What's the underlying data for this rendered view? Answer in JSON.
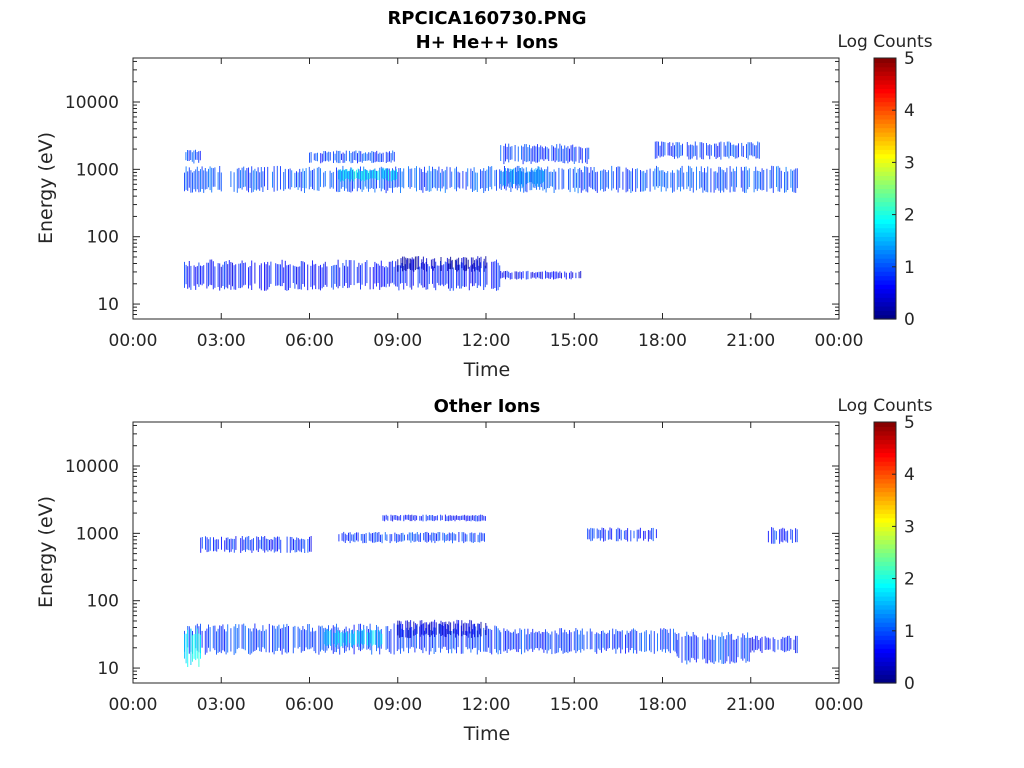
{
  "figure": {
    "title_line1": "RPCICA160730.PNG"
  },
  "chart_data": [
    {
      "type": "heatmap",
      "title": "H+ He++ Ions",
      "xlabel": "Time",
      "ylabel": "Energy (eV)",
      "x_ticks": [
        "00:00",
        "03:00",
        "06:00",
        "09:00",
        "12:00",
        "15:00",
        "18:00",
        "21:00",
        "00:00"
      ],
      "x_range_hours": [
        0,
        24
      ],
      "y_scale": "log",
      "y_ticks": [
        "10",
        "100",
        "1000",
        "10000"
      ],
      "y_tick_values": [
        10,
        100,
        1000,
        10000
      ],
      "y_range": [
        6,
        45000
      ],
      "colorbar": {
        "label": "Log Counts",
        "ticks": [
          "0",
          "1",
          "2",
          "3",
          "4",
          "5"
        ],
        "range": [
          0,
          5
        ],
        "colormap": "jet"
      },
      "bands": [
        {
          "t0": 1.75,
          "t1": 12.5,
          "e0": 18,
          "e1": 40,
          "level": 0.7
        },
        {
          "t0": 9.0,
          "t1": 12.0,
          "e0": 32,
          "e1": 48,
          "level": 0.25
        },
        {
          "t0": 12.5,
          "t1": 15.3,
          "e0": 24,
          "e1": 30,
          "level": 0.6
        },
        {
          "t0": 1.75,
          "t1": 22.6,
          "e0": 500,
          "e1": 1000,
          "level": 1.0
        },
        {
          "t0": 7.0,
          "t1": 9.0,
          "e0": 700,
          "e1": 1000,
          "level": 1.8
        },
        {
          "t0": 12.5,
          "t1": 14.0,
          "e0": 600,
          "e1": 1000,
          "level": 1.3
        },
        {
          "t0": 6.0,
          "t1": 9.0,
          "e0": 1300,
          "e1": 1800,
          "level": 0.9
        },
        {
          "t0": 12.5,
          "t1": 15.5,
          "e0": 1300,
          "e1": 2200,
          "level": 0.9
        },
        {
          "t0": 17.7,
          "t1": 21.3,
          "e0": 1500,
          "e1": 2400,
          "level": 0.9
        },
        {
          "t0": 1.8,
          "t1": 2.3,
          "e0": 1300,
          "e1": 1900,
          "level": 0.9
        }
      ]
    },
    {
      "type": "heatmap",
      "title": "Other Ions",
      "xlabel": "Time",
      "ylabel": "Energy (eV)",
      "x_ticks": [
        "00:00",
        "03:00",
        "06:00",
        "09:00",
        "12:00",
        "15:00",
        "18:00",
        "21:00",
        "00:00"
      ],
      "x_range_hours": [
        0,
        24
      ],
      "y_scale": "log",
      "y_ticks": [
        "10",
        "100",
        "1000",
        "10000"
      ],
      "y_tick_values": [
        10,
        100,
        1000,
        10000
      ],
      "y_range": [
        6,
        45000
      ],
      "colorbar": {
        "label": "Log Counts",
        "ticks": [
          "0",
          "1",
          "2",
          "3",
          "4",
          "5"
        ],
        "range": [
          0,
          5
        ],
        "colormap": "jet"
      },
      "bands": [
        {
          "t0": 1.75,
          "t1": 12.5,
          "e0": 18,
          "e1": 40,
          "level": 0.9
        },
        {
          "t0": 6.5,
          "t1": 8.5,
          "e0": 22,
          "e1": 35,
          "level": 1.7
        },
        {
          "t0": 1.75,
          "t1": 2.3,
          "e0": 12,
          "e1": 35,
          "level": 1.8
        },
        {
          "t0": 9.0,
          "t1": 12.0,
          "e0": 30,
          "e1": 48,
          "level": 0.4
        },
        {
          "t0": 12.5,
          "t1": 18.5,
          "e0": 18,
          "e1": 35,
          "level": 0.9
        },
        {
          "t0": 18.5,
          "t1": 21.0,
          "e0": 13,
          "e1": 30,
          "level": 0.9
        },
        {
          "t0": 21.0,
          "t1": 22.6,
          "e0": 18,
          "e1": 28,
          "level": 0.7
        },
        {
          "t0": 2.3,
          "t1": 6.2,
          "e0": 550,
          "e1": 850,
          "level": 0.8
        },
        {
          "t0": 7.0,
          "t1": 12.0,
          "e0": 750,
          "e1": 1000,
          "level": 0.9
        },
        {
          "t0": 8.5,
          "t1": 12.0,
          "e0": 1550,
          "e1": 1850,
          "level": 0.7
        },
        {
          "t0": 15.4,
          "t1": 17.8,
          "e0": 800,
          "e1": 1150,
          "level": 0.8
        },
        {
          "t0": 21.6,
          "t1": 22.6,
          "e0": 750,
          "e1": 1150,
          "level": 0.8
        }
      ]
    }
  ]
}
